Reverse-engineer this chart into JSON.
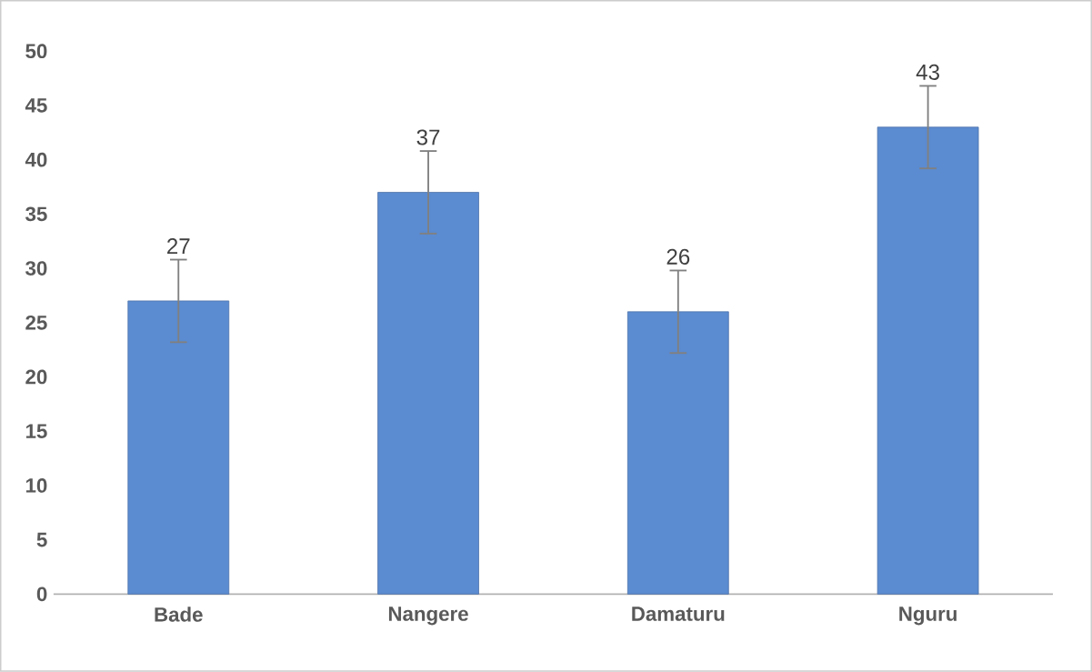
{
  "chart_data": {
    "type": "bar",
    "categories": [
      "Bade",
      "Nangere",
      "Damaturu",
      "Nguru"
    ],
    "values": [
      27,
      37,
      26,
      43
    ],
    "errors": [
      3.8,
      3.8,
      3.8,
      3.8
    ],
    "color": "#5b8bd0",
    "ylim": [
      0,
      50
    ],
    "yticks": [
      0,
      5,
      10,
      15,
      20,
      25,
      30,
      35,
      40,
      45,
      50
    ],
    "data_labels": true
  }
}
